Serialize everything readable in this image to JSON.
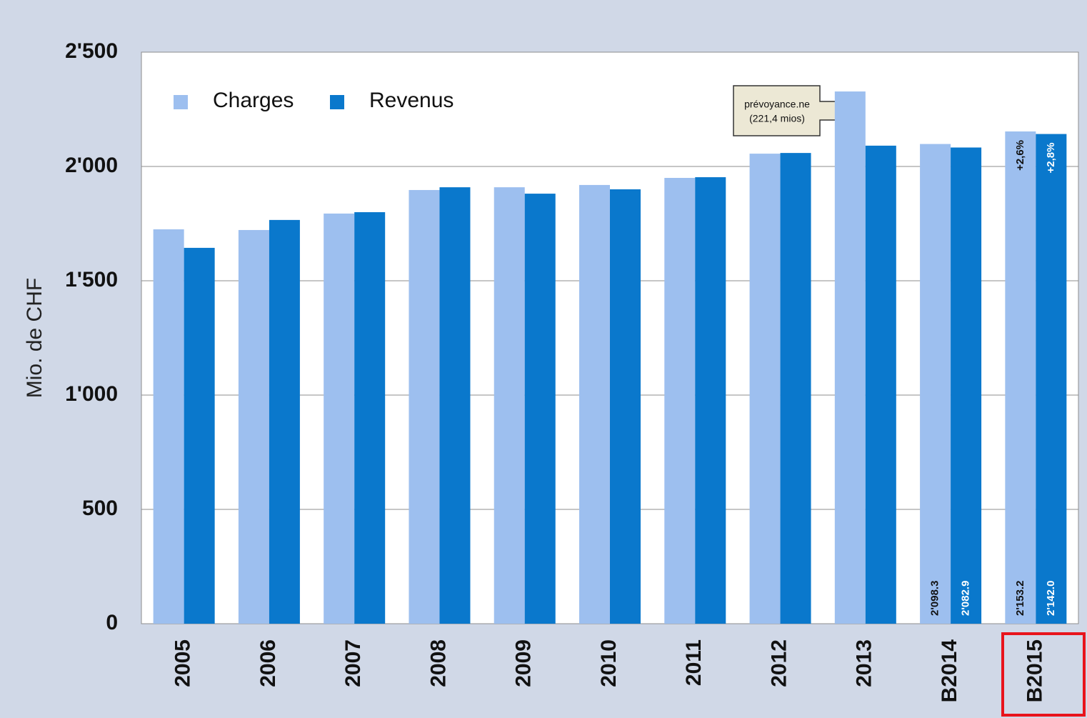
{
  "chart_data": {
    "type": "bar",
    "y_label": "Mio. de CHF",
    "categories": [
      "2005",
      "2006",
      "2007",
      "2008",
      "2009",
      "2010",
      "2011",
      "2012",
      "2013",
      "B2014",
      "B2015"
    ],
    "series": [
      {
        "name": "Charges",
        "color": "#9dbfef",
        "values": [
          1725,
          1722,
          1794,
          1897,
          1909,
          1919,
          1950,
          2056,
          2328,
          2098.3,
          2153.2
        ],
        "value_labels": [
          null,
          null,
          null,
          null,
          null,
          null,
          null,
          null,
          null,
          "2'098.3",
          "2'153.2"
        ]
      },
      {
        "name": "Revenus",
        "color": "#0a78cc",
        "values": [
          1644,
          1766,
          1800,
          1909,
          1881,
          1900,
          1953,
          2059,
          2091,
          2082.9,
          2142.0
        ],
        "value_labels": [
          null,
          null,
          null,
          null,
          null,
          null,
          null,
          null,
          null,
          "2'082.9",
          "2'142.0"
        ]
      }
    ],
    "change_labels": [
      "+2,6%",
      "+2,8%"
    ],
    "callout": [
      "prévoyance.ne",
      "(221,4 mios)"
    ],
    "ylim": [
      0,
      2500
    ],
    "yticks": [
      0,
      500,
      {
        "value": 1000,
        "label": "1'000"
      },
      {
        "value": 1500,
        "label": "1'500"
      },
      {
        "value": 2000,
        "label": "2'000"
      },
      {
        "value": 2500,
        "label": "2'500"
      }
    ],
    "grid": true
  }
}
